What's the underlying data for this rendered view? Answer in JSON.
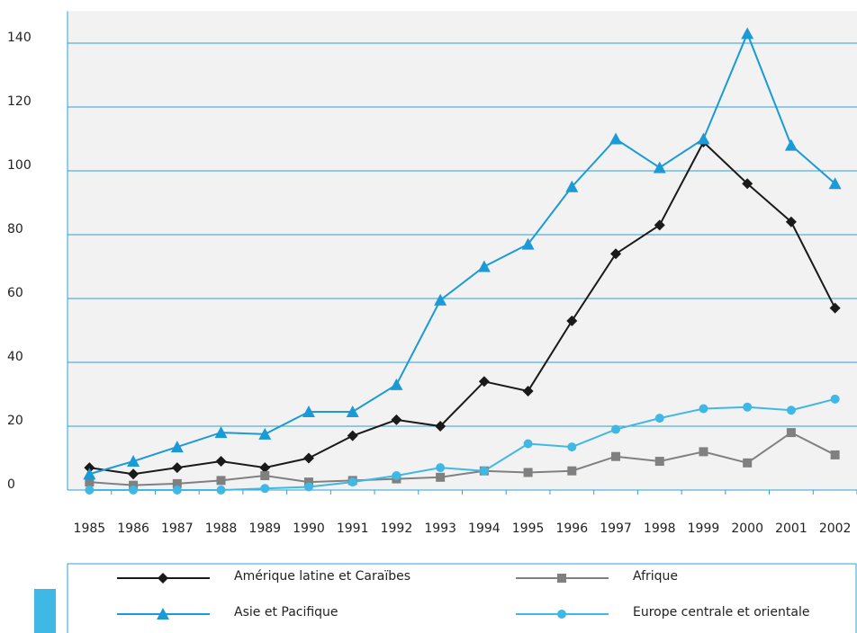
{
  "chart_data": {
    "type": "line",
    "categories": [
      "1985",
      "1986",
      "1987",
      "1988",
      "1989",
      "1990",
      "1991",
      "1992",
      "1993",
      "1994",
      "1995",
      "1996",
      "1997",
      "1998",
      "1999",
      "2000",
      "2001",
      "2002"
    ],
    "series": [
      {
        "name": "Amérique latine et Caraïbes",
        "color": "#1a1a1a",
        "marker": "diamond",
        "values": [
          7,
          5,
          7,
          9,
          7,
          10,
          17,
          22,
          20,
          34,
          31,
          53,
          74,
          83,
          109,
          96,
          84,
          57
        ]
      },
      {
        "name": "Afrique",
        "color": "#808080",
        "marker": "square",
        "values": [
          2.5,
          1.5,
          2,
          3,
          4.5,
          2.5,
          3,
          3.5,
          4,
          6,
          5.5,
          6,
          10.5,
          9,
          12,
          8.5,
          18,
          11
        ]
      },
      {
        "name": "Asie et Pacifique",
        "color": "#1a9ad6",
        "marker": "triangle",
        "values": [
          5,
          9,
          13.5,
          18,
          17.5,
          24.5,
          24.5,
          33,
          59.5,
          70,
          77,
          95,
          110,
          101,
          110,
          143,
          108,
          96
        ]
      },
      {
        "name": "Europe centrale et orientale",
        "color": "#3fb8e6",
        "marker": "circle",
        "values": [
          0,
          0,
          0,
          0,
          0.5,
          1,
          2.5,
          4.5,
          7,
          6,
          14.5,
          13.5,
          19,
          22.5,
          25.5,
          26,
          25,
          28.5
        ]
      }
    ],
    "ylim": [
      0,
      150
    ],
    "yticks": [
      0,
      20,
      40,
      60,
      80,
      100,
      120,
      140
    ],
    "grid": true
  }
}
